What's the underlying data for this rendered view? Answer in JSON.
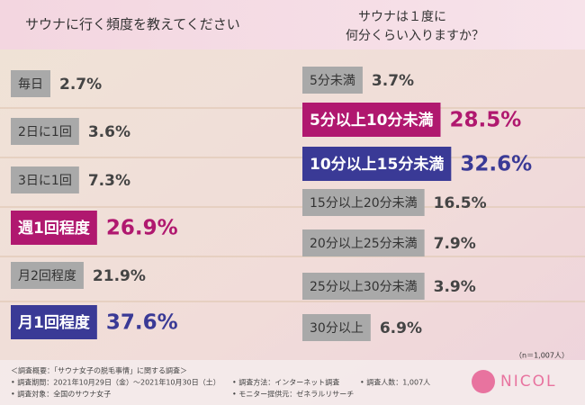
{
  "chart_data": [
    {
      "type": "bar",
      "orientation": "horizontal",
      "title": "サウナに行く頻度を教えてください",
      "categories": [
        "毎日",
        "2日に1回",
        "3日に1回",
        "週1回程度",
        "月2回程度",
        "月1回程度"
      ],
      "values": [
        2.7,
        3.6,
        7.3,
        26.9,
        21.9,
        37.6
      ],
      "value_labels": [
        "2.7%",
        "3.6%",
        "7.3%",
        "26.9%",
        "21.9%",
        "37.6%"
      ],
      "colors": [
        "#a9a9a9",
        "#a9a9a9",
        "#a9a9a9",
        "#b0186f",
        "#a9a9a9",
        "#3a3a96"
      ]
    },
    {
      "type": "bar",
      "orientation": "horizontal",
      "title": [
        "サウナは１度に",
        "何分くらい入りますか？"
      ],
      "categories": [
        "5分未満",
        "5分以上10分未満",
        "10分以上15分未満",
        "15分以上20分未満",
        "20分以上25分未満",
        "25分以上30分未満",
        "30分以上"
      ],
      "values": [
        3.7,
        28.5,
        32.6,
        16.5,
        7.9,
        3.9,
        6.9
      ],
      "value_labels": [
        "3.7%",
        "28.5%",
        "32.6%",
        "16.5%",
        "7.9%",
        "3.9%",
        "6.9%"
      ],
      "colors": [
        "#a9a9a9",
        "#b0186f",
        "#3a3a96",
        "#a9a9a9",
        "#a9a9a9",
        "#a9a9a9",
        "#a9a9a9"
      ],
      "note": "（n＝1,007人）"
    }
  ],
  "footer": [
    "＜調査概要：「サウナ女子の脱毛事情」に関する調査＞",
    "• 調査期間：2021年10月29日（金）〜2021年10月30日（土）",
    "• 調査方法：インターネット調査",
    "• 調査人数：1,007人",
    "• 調査対象：全国のサウナ女子",
    "• モニター提供元：ゼネラルリサーチ"
  ],
  "logo": "NICOL"
}
